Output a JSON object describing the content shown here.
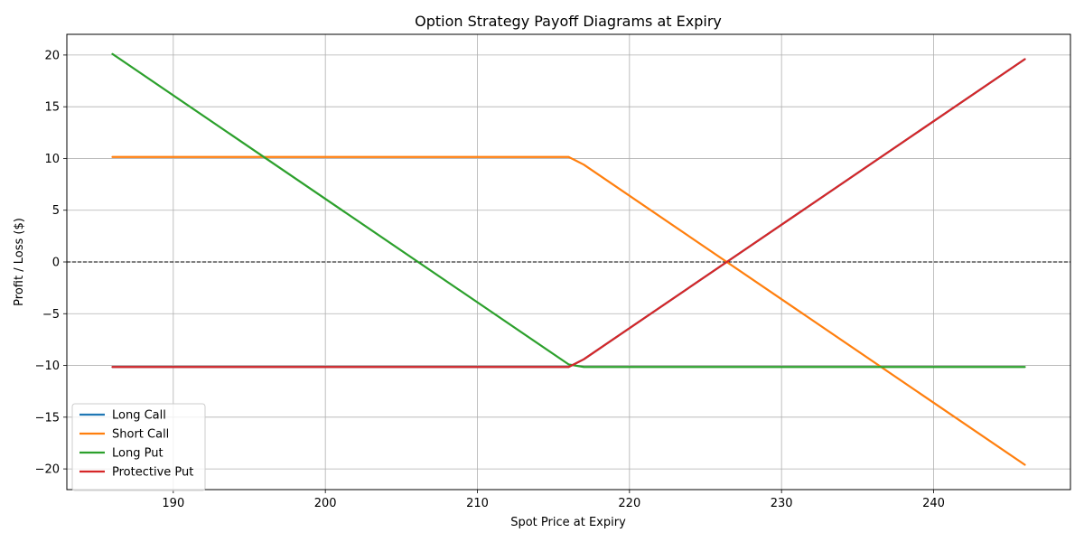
{
  "chart_data": {
    "type": "line",
    "title": "Option Strategy Payoff Diagrams at Expiry",
    "xlabel": "Spot Price at Expiry",
    "ylabel": "Profit / Loss ($)",
    "xlim": [
      183,
      249
    ],
    "ylim": [
      -22,
      22
    ],
    "xticks": [
      190,
      200,
      210,
      220,
      230,
      240
    ],
    "yticks": [
      -20,
      -15,
      -10,
      -5,
      0,
      5,
      10,
      15,
      20
    ],
    "grid": true,
    "legend_position": "lower-left",
    "reference_line": {
      "y": 0,
      "style": "dashed",
      "color": "#000000"
    },
    "series": [
      {
        "name": "Long Call",
        "color": "#1f77b4",
        "points": [
          [
            186,
            -10.15
          ],
          [
            216,
            -10.15
          ],
          [
            217,
            -9.4
          ],
          [
            246,
            19.6
          ]
        ]
      },
      {
        "name": "Short Call",
        "color": "#ff7f0e",
        "points": [
          [
            186,
            10.15
          ],
          [
            216,
            10.15
          ],
          [
            217,
            9.4
          ],
          [
            246,
            -19.6
          ]
        ]
      },
      {
        "name": "Long Put",
        "color": "#2ca02c",
        "points": [
          [
            186,
            20.1
          ],
          [
            216,
            -9.9
          ],
          [
            217,
            -10.15
          ],
          [
            246,
            -10.15
          ]
        ]
      },
      {
        "name": "Protective Put",
        "color": "#d62728",
        "points": [
          [
            186,
            -10.15
          ],
          [
            216,
            -10.15
          ],
          [
            217,
            -9.4
          ],
          [
            246,
            19.6
          ]
        ]
      }
    ]
  }
}
